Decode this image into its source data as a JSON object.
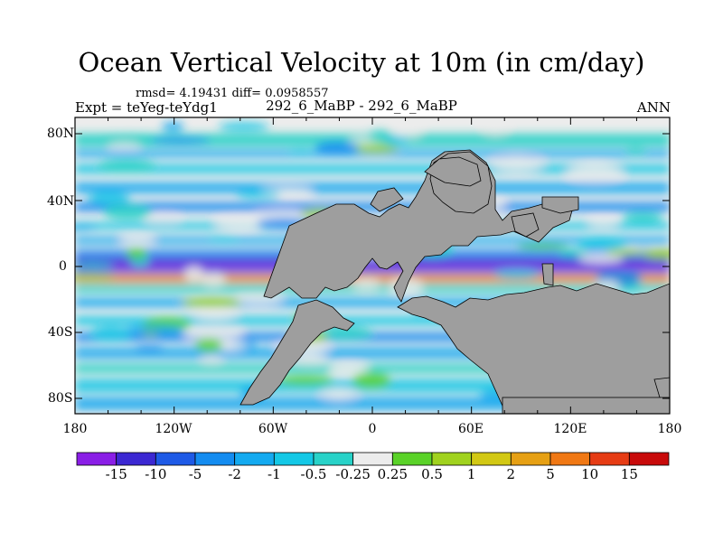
{
  "title": "Ocean Vertical Velocity at 10m (in cm/day)",
  "stats": "rmsd= 4.19431 diff= 0.0958557",
  "subtitle": "292_6_MaBP - 292_6_MaBP",
  "expt": "Expt = teYeg-teYdg1",
  "season": "ANN",
  "lat_labels": [
    "80N",
    "40N",
    "0",
    "40S",
    "80S"
  ],
  "lon_labels": [
    "180",
    "120W",
    "60W",
    "0",
    "60E",
    "120E",
    "180"
  ],
  "colorbar": {
    "labels": [
      "-15",
      "-10",
      "-5",
      "-2",
      "-1",
      "-0.5",
      "-0.25",
      "0.25",
      "0.5",
      "1",
      "2",
      "5",
      "10",
      "15"
    ],
    "colors": [
      "#8a1ee6",
      "#3c28d2",
      "#1e5ae6",
      "#148cf0",
      "#14aaf0",
      "#14c8e6",
      "#28d2c8",
      "#ececec",
      "#5ad228",
      "#a0d21e",
      "#d2c814",
      "#e6a014",
      "#f07814",
      "#e63c14",
      "#c80a0a"
    ]
  },
  "colors": {
    "land": "#9e9e9e",
    "neutral": "#ececec"
  }
}
